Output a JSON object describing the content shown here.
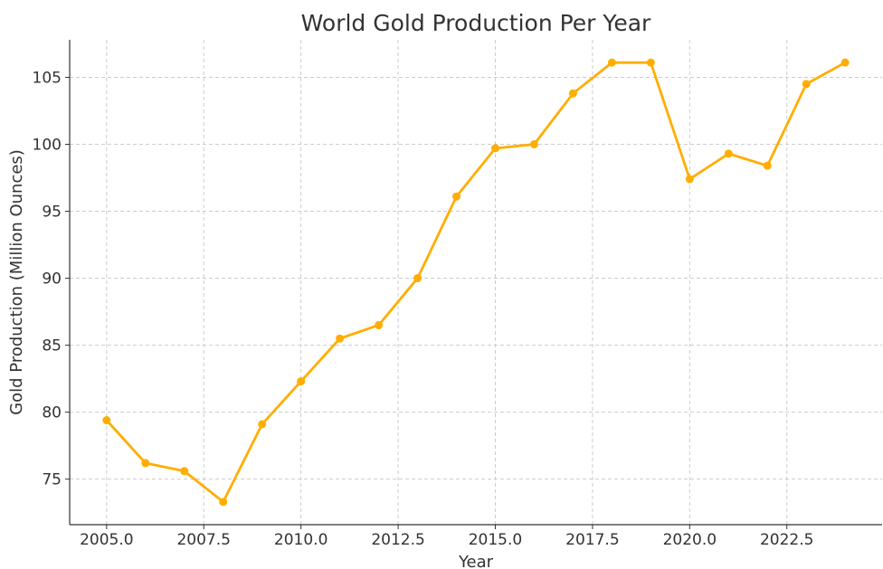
{
  "chart_data": {
    "type": "line",
    "title": "World Gold Production Per Year",
    "xlabel": "Year",
    "ylabel": "Gold Production (Million Ounces)",
    "xlim": [
      2004.05,
      2024.95
    ],
    "ylim": [
      71.6,
      107.8
    ],
    "xticks": [
      2005.0,
      2007.5,
      2010.0,
      2012.5,
      2015.0,
      2017.5,
      2020.0,
      2022.5
    ],
    "xtick_labels": [
      "2005.0",
      "2007.5",
      "2010.0",
      "2012.5",
      "2015.0",
      "2017.5",
      "2020.0",
      "2022.5"
    ],
    "yticks": [
      75,
      80,
      85,
      90,
      95,
      100,
      105
    ],
    "ytick_labels": [
      "75",
      "80",
      "85",
      "90",
      "95",
      "100",
      "105"
    ],
    "grid": true,
    "series": [
      {
        "color": "#FFAE00",
        "x": [
          2005,
          2006,
          2007,
          2008,
          2009,
          2010,
          2011,
          2012,
          2013,
          2014,
          2015,
          2016,
          2017,
          2018,
          2019,
          2020,
          2021,
          2022,
          2023,
          2024
        ],
        "values": [
          79.4,
          76.2,
          75.6,
          73.3,
          79.1,
          82.3,
          85.5,
          86.5,
          90.0,
          96.1,
          99.7,
          100.0,
          103.8,
          106.1,
          106.1,
          97.4,
          99.3,
          98.4,
          104.5,
          106.1
        ]
      }
    ]
  }
}
